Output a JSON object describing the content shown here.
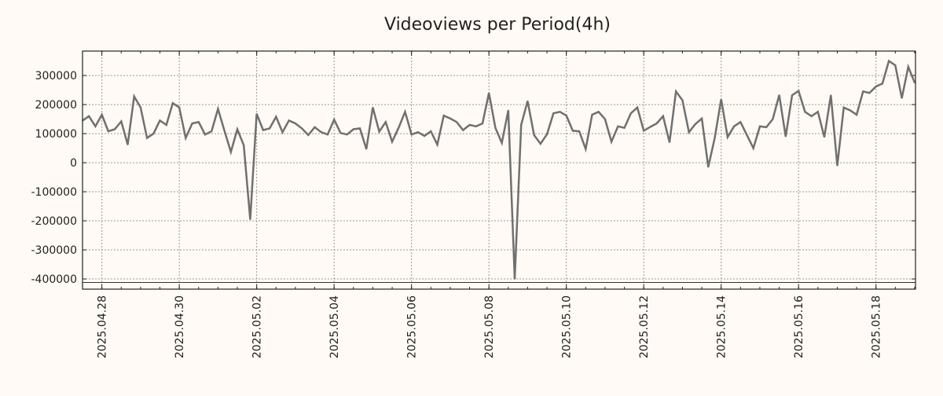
{
  "chart_data": {
    "type": "line",
    "title": "Videoviews per Period(4h)",
    "xlabel": "",
    "ylabel": "",
    "x_start": "2025-04-27T12:00",
    "interval_hours": 4,
    "x_range": [
      "2025-04-27T12:00",
      "2025-05-19T00:30"
    ],
    "ylim": [
      -435000,
      384000
    ],
    "grid": true,
    "reference_line": -412000,
    "x_tick_labels": [
      "2025.04.28",
      "2025.04.30",
      "2025.05.02",
      "2025.05.04",
      "2025.05.06",
      "2025.05.08",
      "2025.05.10",
      "2025.05.12",
      "2025.05.14",
      "2025.05.16",
      "2025.05.18"
    ],
    "y_ticks": [
      300000,
      200000,
      100000,
      0,
      -100000,
      -200000,
      -300000,
      -400000
    ],
    "y_tick_labels": [
      "300000",
      "200000",
      "100000",
      "0",
      "-100000",
      "-200000",
      "-300000",
      "-400000"
    ],
    "series": [
      {
        "name": "Videoviews",
        "color": "#707070",
        "values": [
          145000,
          160000,
          125000,
          165000,
          108000,
          115000,
          142000,
          62000,
          228000,
          190000,
          85000,
          100000,
          145000,
          130000,
          205000,
          190000,
          85000,
          135000,
          140000,
          97000,
          108000,
          185000,
          110000,
          37000,
          115000,
          60000,
          -195000,
          168000,
          112000,
          118000,
          158000,
          105000,
          145000,
          135000,
          118000,
          95000,
          122000,
          105000,
          97000,
          148000,
          102000,
          97000,
          115000,
          118000,
          47000,
          190000,
          107000,
          140000,
          72000,
          120000,
          175000,
          97000,
          105000,
          92000,
          108000,
          62000,
          162000,
          152000,
          140000,
          112000,
          130000,
          125000,
          135000,
          240000,
          120000,
          68000,
          180000,
          -400000,
          130000,
          212000,
          95000,
          65000,
          98000,
          170000,
          175000,
          162000,
          110000,
          108000,
          47000,
          165000,
          175000,
          150000,
          72000,
          125000,
          120000,
          170000,
          190000,
          110000,
          123000,
          135000,
          160000,
          70000,
          245000,
          215000,
          105000,
          133000,
          152000,
          -15000,
          85000,
          218000,
          88000,
          125000,
          140000,
          95000,
          50000,
          125000,
          122000,
          150000,
          233000,
          90000,
          232000,
          247000,
          175000,
          160000,
          175000,
          88000,
          232000,
          -10000,
          190000,
          180000,
          165000,
          245000,
          240000,
          262000,
          272000,
          350000,
          335000,
          222000,
          330000,
          275000
        ]
      }
    ]
  }
}
